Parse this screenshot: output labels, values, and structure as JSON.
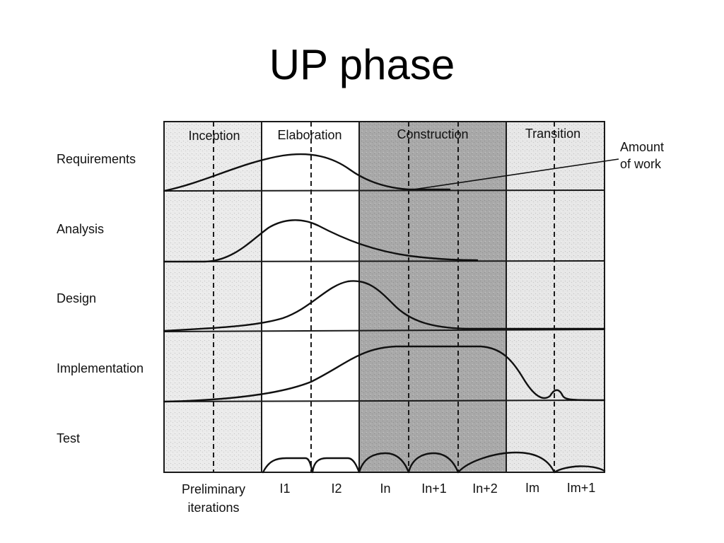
{
  "title": "UP phase",
  "phases": [
    {
      "name": "Inception",
      "fill": "#ebebeb"
    },
    {
      "name": "Elaboration",
      "fill": "#ffffff"
    },
    {
      "name": "Construction",
      "fill": "#a9a9a9"
    },
    {
      "name": "Transition",
      "fill": "#e7e7e7"
    }
  ],
  "workflows": [
    "Requirements",
    "Analysis",
    "Design",
    "Implementation",
    "Test"
  ],
  "iterations": [
    {
      "lines": [
        "Preliminary",
        "iterations"
      ]
    },
    {
      "lines": [
        "I1"
      ]
    },
    {
      "lines": [
        "I2"
      ]
    },
    {
      "lines": [
        "In"
      ]
    },
    {
      "lines": [
        "In+1"
      ]
    },
    {
      "lines": [
        "In+2"
      ]
    },
    {
      "lines": [
        "Im"
      ]
    },
    {
      "lines": [
        "Im+1"
      ]
    }
  ],
  "annotation": {
    "lines": [
      "Amount",
      "of work"
    ]
  }
}
